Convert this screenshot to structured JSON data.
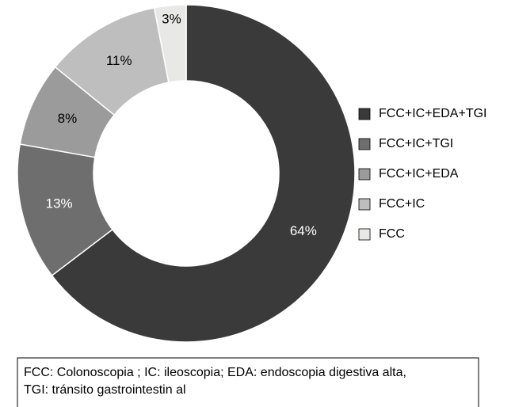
{
  "chart_data": {
    "type": "donut",
    "categories": [
      "FCC+IC+EDA+TGI",
      "FCC+IC+TGI",
      "FCC+IC+EDA",
      "FCC+IC",
      "FCC"
    ],
    "values": [
      64,
      13,
      8,
      11,
      3
    ],
    "value_labels": [
      "64%",
      "13%",
      "8%",
      "11%",
      "3%"
    ],
    "colors": [
      "#3a3a3a",
      "#6e6e6e",
      "#9b9b9b",
      "#bebebe",
      "#e8e8e6"
    ],
    "legend": "right"
  },
  "footnote": [
    "FCC: Colonoscopia ; IC: ileoscopia; EDA: endoscopia digestiva alta,",
    "TGI: tránsito gastrointestin al"
  ]
}
